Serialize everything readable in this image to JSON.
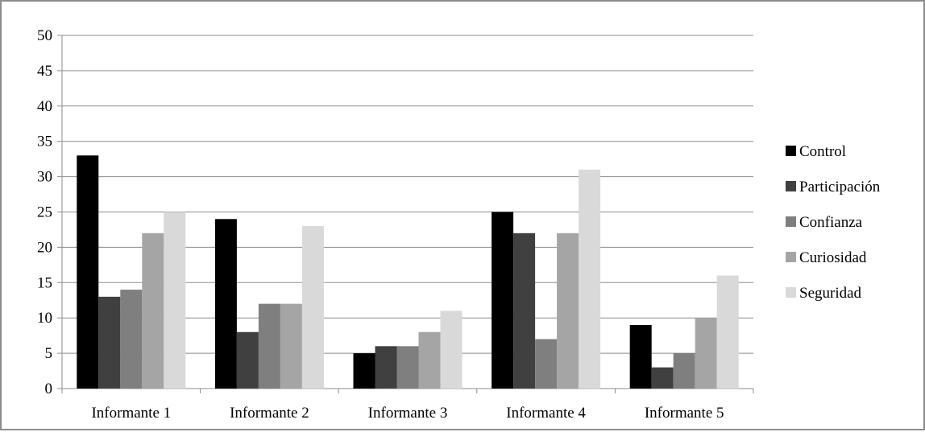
{
  "chart_data": {
    "type": "bar",
    "categories": [
      "Informante 1",
      "Informante 2",
      "Informante 3",
      "Informante 4",
      "Informante 5"
    ],
    "series": [
      {
        "name": "Control",
        "values": [
          33,
          24,
          5,
          25,
          9
        ],
        "color": "#000000"
      },
      {
        "name": "Participación",
        "values": [
          13,
          8,
          6,
          22,
          3
        ],
        "color": "#404040"
      },
      {
        "name": "Confianza",
        "values": [
          14,
          12,
          6,
          7,
          5
        ],
        "color": "#7f7f7f"
      },
      {
        "name": "Curiosidad",
        "values": [
          22,
          12,
          8,
          22,
          10
        ],
        "color": "#a5a5a5"
      },
      {
        "name": "Seguridad",
        "values": [
          25,
          23,
          11,
          31,
          16
        ],
        "color": "#d9d9d9"
      }
    ],
    "ylim": [
      0,
      50
    ],
    "yticks": [
      0,
      5,
      10,
      15,
      20,
      25,
      30,
      35,
      40,
      45,
      50
    ],
    "grid": true,
    "legend_position": "right"
  }
}
